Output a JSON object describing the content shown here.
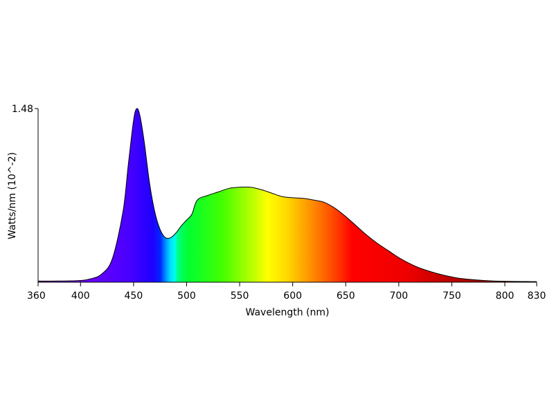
{
  "chart_data": {
    "type": "area",
    "title": "",
    "xlabel": "Wavelength (nm)",
    "ylabel": "Watts/nm (10^-2)",
    "xlim": [
      360,
      830
    ],
    "ylim": [
      0,
      1.48
    ],
    "x_ticks": [
      360,
      400,
      450,
      500,
      550,
      600,
      650,
      700,
      750,
      800,
      830
    ],
    "y_ticks": [
      1.48
    ],
    "y_tick_labels": [
      "1.48"
    ],
    "grid": false,
    "fill": "visible-spectrum color gradient",
    "series": [
      {
        "x": [
          360,
          380,
          400,
          410,
          420,
          430,
          440,
          445,
          450,
          453,
          456,
          460,
          465,
          470,
          475,
          480,
          485,
          490,
          495,
          500,
          505,
          510,
          520,
          530,
          540,
          550,
          560,
          570,
          580,
          590,
          600,
          610,
          620,
          630,
          640,
          650,
          660,
          670,
          680,
          690,
          700,
          710,
          720,
          730,
          740,
          750,
          760,
          780,
          800,
          830
        ],
        "y": [
          0.01,
          0.01,
          0.015,
          0.03,
          0.07,
          0.2,
          0.6,
          1.0,
          1.38,
          1.48,
          1.42,
          1.2,
          0.85,
          0.6,
          0.45,
          0.38,
          0.38,
          0.42,
          0.48,
          0.53,
          0.58,
          0.7,
          0.74,
          0.77,
          0.8,
          0.81,
          0.81,
          0.79,
          0.76,
          0.73,
          0.72,
          0.715,
          0.7,
          0.68,
          0.63,
          0.56,
          0.48,
          0.4,
          0.33,
          0.27,
          0.21,
          0.16,
          0.12,
          0.09,
          0.065,
          0.045,
          0.03,
          0.015,
          0.008,
          0.005
        ]
      }
    ]
  }
}
